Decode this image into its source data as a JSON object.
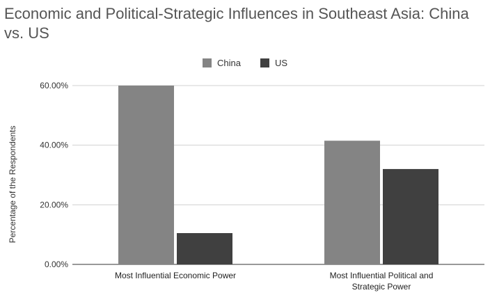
{
  "chart_data": {
    "type": "bar",
    "title": "Economic and Political-Strategic Influences in Southeast Asia: China vs. US",
    "ylabel": "Percentage of the Respondents",
    "xlabel": "",
    "categories": [
      [
        "Most Influential Economic Power"
      ],
      [
        "Most Influential Political and",
        "Strategic Power"
      ]
    ],
    "series": [
      {
        "name": "China",
        "color": "#848484",
        "values": [
          60.0,
          41.5
        ]
      },
      {
        "name": "US",
        "color": "#404040",
        "values": [
          10.5,
          32.0
        ]
      }
    ],
    "ylim": [
      0,
      60
    ],
    "yticks": [
      {
        "value": 0,
        "label": "0.00%"
      },
      {
        "value": 20,
        "label": "20.00%"
      },
      {
        "value": 40,
        "label": "40.00%"
      },
      {
        "value": 60,
        "label": "60.00%"
      }
    ],
    "grid": true,
    "legend_position": "top"
  }
}
